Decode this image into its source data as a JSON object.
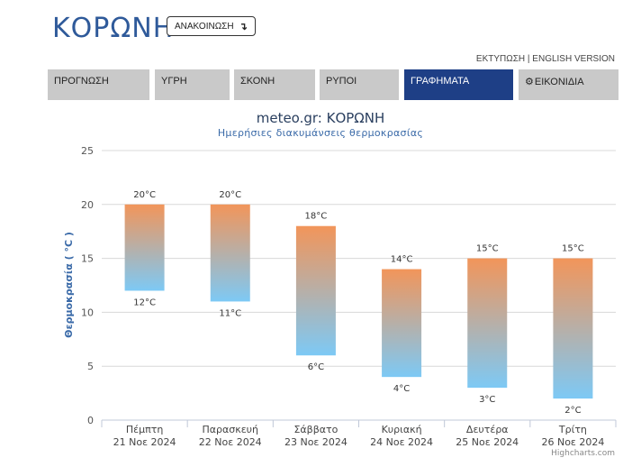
{
  "header": {
    "city": "ΚΟΡΩΝΗ",
    "announce_label": "ΑΝΑΚΟΙΝΩΣΗ",
    "print_label": "ΕΚΤΥΠΩΣΗ",
    "separator": "|",
    "english_label": "ENGLISH VERSION"
  },
  "nav": {
    "tabs": [
      {
        "label": "ΠΡΟΓΝΩΣΗ",
        "active": false
      },
      {
        "label": "ΥΓΡΗ",
        "active": false
      },
      {
        "label": "ΣΚΟΝΗ",
        "active": false
      },
      {
        "label": "ΡΥΠΟΙ",
        "active": false
      },
      {
        "label": "ΓΡΑΦΗΜΑΤΑ",
        "active": true
      },
      {
        "label": "ΕΙΚΟΝΙΔΙΑ",
        "active": false,
        "icon": "gear-icon"
      }
    ]
  },
  "credits": "Highcharts.com",
  "colors": {
    "bar_top": "#f2955a",
    "bar_bottom": "#7dc9f5",
    "active_tab": "#1e3f86",
    "title": "#2f5a9a"
  },
  "chart_data": {
    "type": "bar",
    "subtype": "columnrange",
    "title": "meteo.gr: ΚΟΡΩΝΗ",
    "subtitle": "Ημερήσιες διακυμάνσεις θερμοκρασίας",
    "ylabel": "Θερμοκρασία ( °C )",
    "ylim": [
      0,
      25
    ],
    "yticks": [
      0,
      5,
      10,
      15,
      20,
      25
    ],
    "grid": true,
    "unit": "°C",
    "categories": [
      {
        "day": "Πέμπτη",
        "date": "21 Νοε 2024"
      },
      {
        "day": "Παρασκευή",
        "date": "22 Νοε 2024"
      },
      {
        "day": "Σάββατο",
        "date": "23 Νοε 2024"
      },
      {
        "day": "Κυριακή",
        "date": "24 Νοε 2024"
      },
      {
        "day": "Δευτέρα",
        "date": "25 Νοε 2024"
      },
      {
        "day": "Τρίτη",
        "date": "26 Νοε 2024"
      }
    ],
    "min": [
      12,
      11,
      6,
      4,
      3,
      2
    ],
    "max": [
      20,
      20,
      18,
      14,
      15,
      15
    ]
  }
}
